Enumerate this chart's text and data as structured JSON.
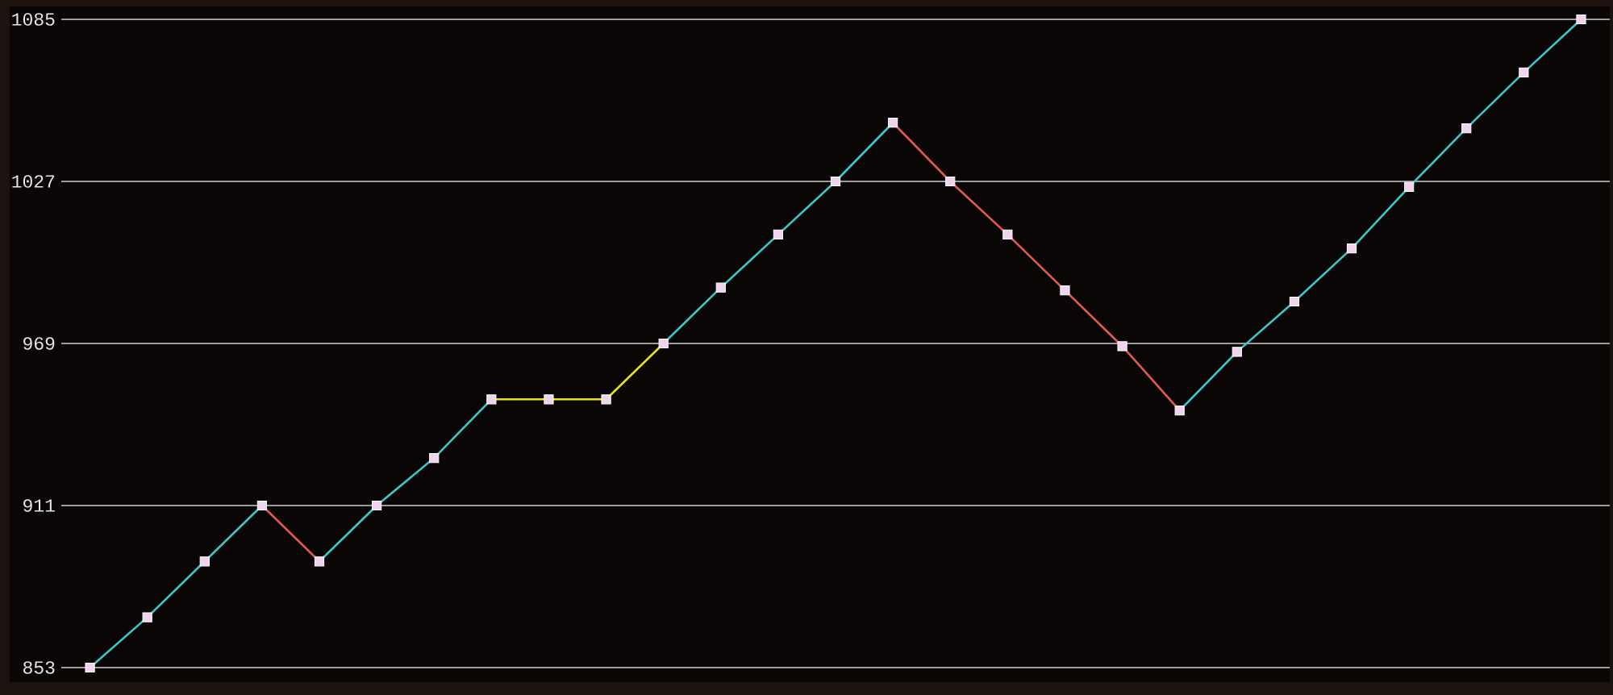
{
  "chart_data": {
    "type": "line",
    "grid": "y",
    "tick_labels": "y",
    "categories": [
      null,
      null,
      null,
      null,
      null,
      null,
      null,
      null,
      null,
      null,
      null,
      null,
      null,
      null,
      null,
      null,
      null,
      null,
      null,
      null,
      null,
      null,
      null,
      null,
      null,
      null,
      null
    ],
    "ylim": [
      853,
      1085
    ],
    "yticks": [
      853,
      911,
      969,
      1027,
      1085
    ],
    "series": [
      {
        "color": "#3cc8c8",
        "values": [
          853,
          871,
          891,
          911,
          null,
          null,
          null,
          null,
          null,
          null,
          null,
          null,
          null,
          null,
          null,
          null,
          null,
          null,
          null,
          null,
          null,
          null,
          null,
          null,
          null,
          null,
          null
        ]
      },
      {
        "color": "#e05a50",
        "values": [
          null,
          null,
          null,
          911,
          891,
          null,
          null,
          null,
          null,
          null,
          null,
          null,
          null,
          null,
          null,
          null,
          null,
          null,
          null,
          null,
          null,
          null,
          null,
          null,
          null,
          null,
          null
        ]
      },
      {
        "color": "#3cc8c8",
        "values": [
          null,
          null,
          null,
          null,
          891,
          911,
          928,
          949,
          null,
          null,
          null,
          null,
          null,
          null,
          null,
          null,
          null,
          null,
          null,
          null,
          null,
          null,
          null,
          null,
          null,
          null,
          null
        ]
      },
      {
        "color": "#e8e020",
        "values": [
          null,
          null,
          null,
          null,
          null,
          null,
          null,
          949,
          949,
          949,
          969,
          null,
          null,
          null,
          null,
          null,
          null,
          null,
          null,
          null,
          null,
          null,
          null,
          null,
          null,
          null,
          null
        ]
      },
      {
        "color": "#3cc8c8",
        "values": [
          null,
          null,
          null,
          null,
          null,
          null,
          null,
          null,
          null,
          null,
          969,
          989,
          1008,
          1027,
          1048,
          null,
          null,
          null,
          null,
          null,
          null,
          null,
          null,
          null,
          null,
          null,
          null
        ]
      },
      {
        "color": "#e05a50",
        "values": [
          null,
          null,
          null,
          null,
          null,
          null,
          null,
          null,
          null,
          null,
          null,
          null,
          null,
          null,
          1048,
          1027,
          1008,
          988,
          968,
          945,
          null,
          null,
          null,
          null,
          null,
          null,
          null
        ]
      },
      {
        "color": "#3cc8c8",
        "values": [
          null,
          null,
          null,
          null,
          null,
          null,
          null,
          null,
          null,
          null,
          null,
          null,
          null,
          null,
          null,
          null,
          null,
          null,
          null,
          945,
          966,
          984,
          1003,
          1025,
          1046,
          1066,
          1085
        ]
      },
      {
        "type": "scatter",
        "marker": "square",
        "color": "#f0d4ee",
        "values": [
          853,
          871,
          891,
          911,
          891,
          911,
          928,
          949,
          949,
          949,
          969,
          989,
          1008,
          1027,
          1048,
          1027,
          1008,
          988,
          968,
          945,
          966,
          984,
          1003,
          1025,
          1046,
          1066,
          1085
        ]
      }
    ]
  }
}
